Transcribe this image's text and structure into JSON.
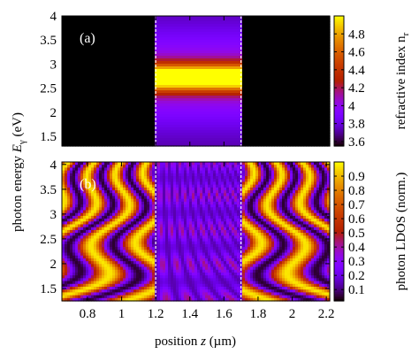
{
  "chart_data": [
    {
      "type": "heatmap",
      "panel_label": "(a)",
      "xlim": [
        0.65,
        2.22
      ],
      "ylim": [
        1.3,
        4.0
      ],
      "xticks": [
        0.8,
        1,
        1.2,
        1.4,
        1.6,
        1.8,
        2,
        2.2
      ],
      "yticks": [
        1.5,
        2,
        2.5,
        3,
        3.5,
        4
      ],
      "show_xtick_labels": false,
      "interfaces": [
        1.2,
        1.7
      ],
      "colorbar": {
        "label": "refractive index n",
        "label_sub": "r",
        "clim": [
          3.55,
          5.0
        ],
        "ticks": [
          3.6,
          3.8,
          4,
          4.2,
          4.4,
          4.6,
          4.8
        ]
      }
    },
    {
      "type": "heatmap",
      "panel_label": "(b)",
      "xlim": [
        0.65,
        2.22
      ],
      "ylim": [
        1.25,
        4.05
      ],
      "xticks": [
        0.8,
        1,
        1.2,
        1.4,
        1.6,
        1.8,
        2,
        2.2
      ],
      "yticks": [
        1.5,
        2,
        2.5,
        3,
        3.5,
        4
      ],
      "show_xtick_labels": true,
      "interfaces": [
        1.2,
        1.7
      ],
      "colorbar": {
        "label": "photon LDOS (norm.)",
        "clim": [
          0.02,
          1.0
        ],
        "ticks": [
          0.1,
          0.2,
          0.3,
          0.4,
          0.5,
          0.6,
          0.7,
          0.8,
          0.9
        ]
      }
    }
  ],
  "ylabel": {
    "text": "photon energy",
    "symbol": "E",
    "sub": "γ",
    "unit": "(eV)"
  },
  "xlabel": {
    "text": "position",
    "symbol": "z",
    "unit": "(µm)"
  }
}
